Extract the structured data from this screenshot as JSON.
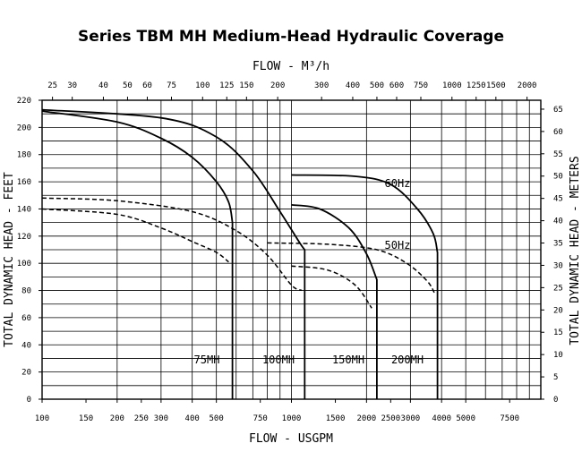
{
  "chart_data": {
    "type": "line",
    "title": "Series TBM MH Medium-Head Hydraulic Coverage",
    "xlabel": "FLOW - USGPM",
    "x2label": "FLOW - M³/h",
    "ylabel": "TOTAL DYNAMIC HEAD - FEET",
    "y2label": "TOTAL DYNAMIC HEAD - METERS",
    "x_scale": "log",
    "xlim": [
      100,
      10000
    ],
    "ylim": [
      0,
      220
    ],
    "y2lim": [
      0,
      67
    ],
    "grid": true,
    "x_ticks": [
      {
        "value": 100,
        "label": "100"
      },
      {
        "value": 150,
        "label": "150"
      },
      {
        "value": 200,
        "label": "200"
      },
      {
        "value": 250,
        "label": "250"
      },
      {
        "value": 300,
        "label": "300"
      },
      {
        "value": 400,
        "label": "400"
      },
      {
        "value": 500,
        "label": "500"
      },
      {
        "value": 750,
        "label": "750"
      },
      {
        "value": 1000,
        "label": "1000"
      },
      {
        "value": 1500,
        "label": "1500"
      },
      {
        "value": 2000,
        "label": "2000"
      },
      {
        "value": 2500,
        "label": "2500"
      },
      {
        "value": 3000,
        "label": "3000"
      },
      {
        "value": 4000,
        "label": "4000"
      },
      {
        "value": 5000,
        "label": "5000"
      },
      {
        "value": 7500,
        "label": "7500"
      }
    ],
    "x2_ticks": [
      {
        "value": 25,
        "label": "25"
      },
      {
        "value": 30,
        "label": "30"
      },
      {
        "value": 40,
        "label": "40"
      },
      {
        "value": 50,
        "label": "50"
      },
      {
        "value": 60,
        "label": "60"
      },
      {
        "value": 75,
        "label": "75"
      },
      {
        "value": 100,
        "label": "100"
      },
      {
        "value": 125,
        "label": "125"
      },
      {
        "value": 150,
        "label": "150"
      },
      {
        "value": 200,
        "label": "200"
      },
      {
        "value": 300,
        "label": "300"
      },
      {
        "value": 400,
        "label": "400"
      },
      {
        "value": 500,
        "label": "500"
      },
      {
        "value": 600,
        "label": "600"
      },
      {
        "value": 750,
        "label": "750"
      },
      {
        "value": 1000,
        "label": "1000"
      },
      {
        "value": 1250,
        "label": "1250"
      },
      {
        "value": 1500,
        "label": "1500"
      },
      {
        "value": 2000,
        "label": "2000"
      }
    ],
    "y_ticks": [
      0,
      20,
      40,
      60,
      80,
      100,
      120,
      140,
      160,
      180,
      200,
      220
    ],
    "y2_ticks": [
      0,
      5,
      10,
      15,
      20,
      25,
      30,
      35,
      40,
      45,
      50,
      55,
      60,
      65
    ],
    "series_labels": [
      "60Hz",
      "50Hz"
    ],
    "series": [
      {
        "name": "75MH",
        "hz": "60Hz",
        "style": "solid",
        "x": [
          100,
          200,
          300,
          400,
          500,
          560,
          580
        ],
        "y": [
          212,
          204,
          192,
          178,
          160,
          145,
          130
        ],
        "drop_to": 0
      },
      {
        "name": "100MH",
        "hz": "60Hz",
        "style": "solid",
        "x": [
          100,
          300,
          500,
          700,
          900,
          1080,
          1130
        ],
        "y": [
          213,
          207,
          193,
          168,
          138,
          115,
          110
        ],
        "drop_to": 0
      },
      {
        "name": "150MH",
        "hz": "60Hz",
        "style": "solid",
        "x": [
          1000,
          1300,
          1700,
          2000,
          2200
        ],
        "y": [
          143,
          140,
          126,
          107,
          88
        ],
        "drop_to": 0
      },
      {
        "name": "200MH",
        "hz": "60Hz",
        "style": "solid",
        "x": [
          1000,
          1800,
          2500,
          3200,
          3700,
          3850
        ],
        "y": [
          165,
          164,
          158,
          140,
          122,
          108
        ],
        "drop_to": 0
      },
      {
        "name": "75MH",
        "hz": "50Hz",
        "style": "dashed",
        "x": [
          100,
          200,
          300,
          400,
          500,
          560
        ],
        "y": [
          140,
          136,
          126,
          116,
          108,
          101
        ]
      },
      {
        "name": "100MH",
        "hz": "50Hz",
        "style": "dashed",
        "x": [
          100,
          200,
          400,
          600,
          800,
          1000,
          1100
        ],
        "y": [
          148,
          146,
          138,
          124,
          106,
          84,
          80
        ]
      },
      {
        "name": "150MH",
        "hz": "50Hz",
        "style": "dashed",
        "x": [
          1000,
          1400,
          1800,
          2100
        ],
        "y": [
          98,
          95,
          84,
          67
        ]
      },
      {
        "name": "200MH",
        "hz": "50Hz",
        "style": "dashed",
        "x": [
          800,
          1400,
          2200,
          2900,
          3500,
          3750
        ],
        "y": [
          115,
          114,
          110,
          100,
          87,
          78
        ]
      }
    ],
    "annotations": [
      "75MH",
      "100MH",
      "150MH",
      "200MH",
      "60Hz",
      "50Hz"
    ]
  }
}
